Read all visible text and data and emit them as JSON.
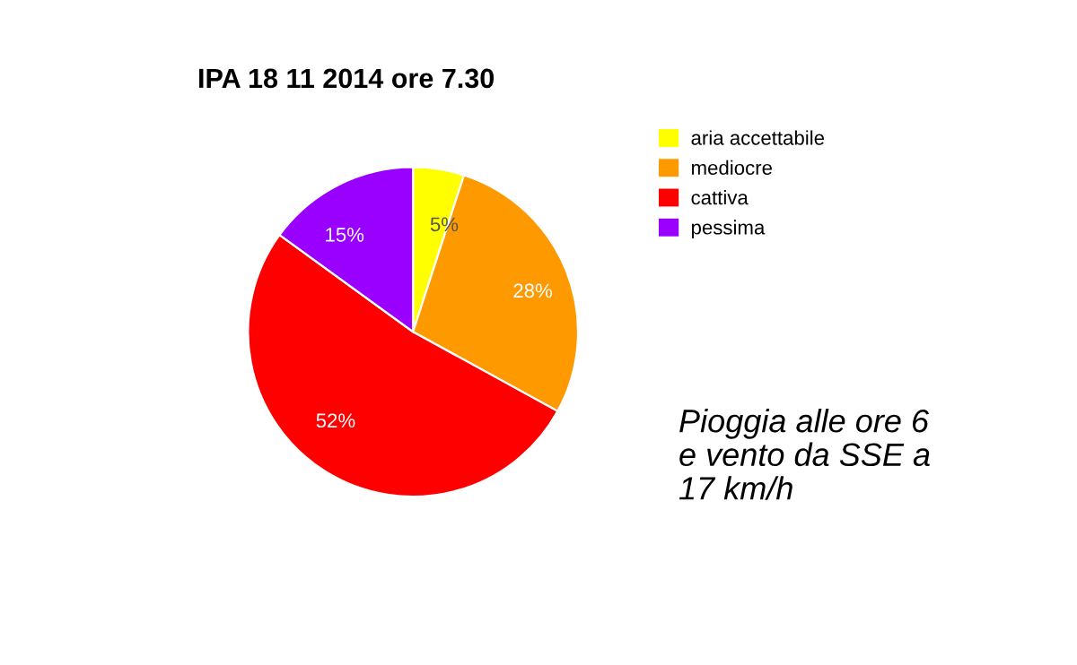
{
  "chart_data": {
    "type": "pie",
    "title": "IPA 18 11 2014 ore 7.30",
    "categories": [
      "aria accettabile",
      "mediocre",
      "cattiva",
      "pessima"
    ],
    "values": [
      5,
      28,
      52,
      15
    ],
    "colors": [
      "#ffff00",
      "#ff9900",
      "#ff0000",
      "#9900ff"
    ],
    "value_labels": [
      "5%",
      "28%",
      "52%",
      "15%"
    ],
    "legend": "top right",
    "annotations": [
      "Pioggia alle ore 6\ne vento da SSE a\n17 km/h"
    ]
  }
}
